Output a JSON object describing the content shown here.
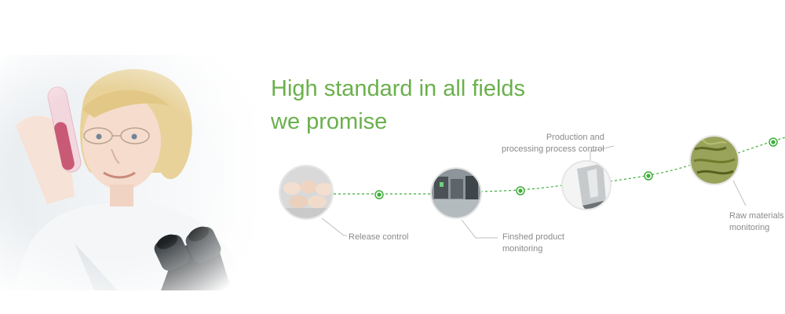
{
  "headline": {
    "line1": "High standard in all fields",
    "line2": "we promise"
  },
  "steps": [
    {
      "name": "release-control",
      "label_lines": [
        "Release control"
      ]
    },
    {
      "name": "finished-product-monitoring",
      "label_lines": [
        "Finshed product",
        "monitoring"
      ]
    },
    {
      "name": "production-process-control",
      "label_lines": [
        "Production and",
        "processing process control"
      ]
    },
    {
      "name": "raw-materials-monitoring",
      "label_lines": [
        "Raw materials",
        "monitoring"
      ]
    }
  ],
  "colors": {
    "accent": "#6ab04c",
    "line": "#3fae3a",
    "label": "#8a8a8a"
  },
  "icons": {
    "hero": "scientist-photo",
    "step_images": [
      "packaged-food-image",
      "factory-machine-image",
      "funnel-machine-image",
      "tea-leaves-image"
    ],
    "markers": "timeline-dot-icon"
  }
}
